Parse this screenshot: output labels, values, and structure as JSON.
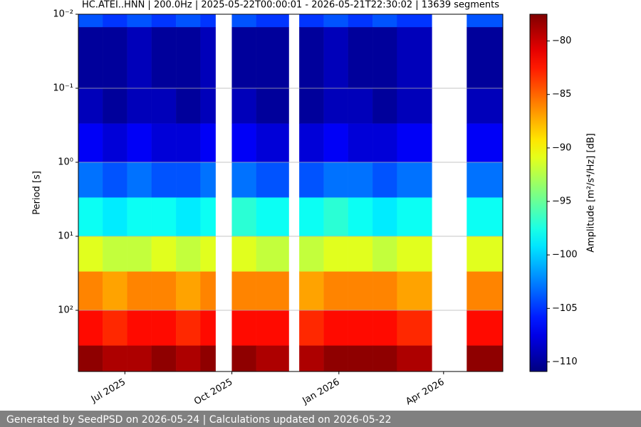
{
  "chart_data": {
    "type": "heatmap",
    "title": "HC.ATEI..HNN | 200.0Hz | 2025-05-22T00:00:01 - 2026-05-21T22:30:02 | 13639 segments",
    "ylabel": "Period [s]",
    "colorbar_label": "Amplitude [m²/s⁴/Hz] [dB]",
    "footer": "Generated by SeedPSD on 2026-05-24 | Calculations updated on 2026-05-22",
    "x": [
      "2025-05-22T00:00:01",
      "2025-06-12",
      "2025-07-03",
      "2025-07-24",
      "2025-08-14",
      "2025-09-04",
      "2025-09-17",
      "2025-10-01",
      "2025-10-22",
      "2025-11-19",
      "2025-11-28",
      "2025-12-19",
      "2026-01-09",
      "2026-01-30",
      "2026-02-20",
      "2026-03-22",
      "2026-04-21",
      "2026-05-21T22:30:02"
    ],
    "y": [
      0.01,
      0.015,
      0.1,
      0.3,
      1,
      3,
      10,
      30,
      100,
      300,
      671
    ],
    "values": [
      [
        -104,
        -105,
        -104,
        -105,
        -104,
        -105,
        null,
        -104,
        -105,
        null,
        -105,
        -104,
        -105,
        -104,
        -105,
        null,
        -104
      ],
      [
        -110,
        -110,
        -109,
        -110,
        -110,
        -109,
        null,
        -110,
        -110,
        null,
        -110,
        -109,
        -110,
        -110,
        -109,
        null,
        -110
      ],
      [
        -109,
        -110,
        -109,
        -109,
        -110,
        -109,
        null,
        -109,
        -110,
        null,
        -110,
        -109,
        -109,
        -110,
        -109,
        null,
        -109
      ],
      [
        -107,
        -108,
        -107,
        -108,
        -108,
        -107,
        null,
        -107,
        -108,
        null,
        -108,
        -107,
        -108,
        -108,
        -107,
        null,
        -107
      ],
      [
        -103,
        -104,
        -103,
        -104,
        -104,
        -103,
        null,
        -103,
        -104,
        null,
        -104,
        -103,
        -103,
        -104,
        -103,
        null,
        -103
      ],
      [
        -98,
        -99,
        -98,
        -98,
        -99,
        -98,
        null,
        -97,
        -98,
        null,
        -98,
        -97,
        -98,
        -99,
        -98,
        null,
        -98
      ],
      [
        -91,
        -92,
        -92,
        -91,
        -92,
        -91,
        null,
        -91,
        -92,
        null,
        -92,
        -91,
        -91,
        -92,
        -91,
        null,
        -91
      ],
      [
        -86,
        -87,
        -86,
        -86,
        -87,
        -86,
        null,
        -86,
        -86,
        null,
        -87,
        -86,
        -86,
        -86,
        -87,
        null,
        -86
      ],
      [
        -82,
        -83,
        -82,
        -82,
        -83,
        -82,
        null,
        -82,
        -82,
        null,
        -83,
        -82,
        -82,
        -82,
        -83,
        null,
        -82
      ],
      [
        -78,
        -79,
        -79,
        -78,
        -79,
        -78,
        null,
        -78,
        -79,
        null,
        -79,
        -78,
        -78,
        -78,
        -79,
        null,
        -78
      ]
    ],
    "xlim": [
      "2025-05-22T00:00:01",
      "2026-05-21T22:30:02"
    ],
    "xticks": [
      {
        "value": "2025-07-01",
        "label": "Jul 2025"
      },
      {
        "value": "2025-10-01",
        "label": "Oct 2025"
      },
      {
        "value": "2026-01-01",
        "label": "Jan 2026"
      },
      {
        "value": "2026-04-01",
        "label": "Apr 2026"
      }
    ],
    "ylim": [
      0.01,
      671
    ],
    "y_scale": "log",
    "y_inverted": true,
    "yticks": [
      {
        "value": 0.01,
        "label": "10⁻²"
      },
      {
        "value": 0.1,
        "label": "10⁻¹"
      },
      {
        "value": 1,
        "label": "10⁰"
      },
      {
        "value": 10,
        "label": "10¹"
      },
      {
        "value": 100,
        "label": "10²"
      }
    ],
    "grid": "y",
    "colormap": "jet",
    "clim": [
      -110.9,
      -77.5
    ],
    "cticks": [
      {
        "value": -80,
        "label": "−80"
      },
      {
        "value": -85,
        "label": "−85"
      },
      {
        "value": -90,
        "label": "−90"
      },
      {
        "value": -95,
        "label": "−95"
      },
      {
        "value": -100,
        "label": "−100"
      },
      {
        "value": -105,
        "label": "−105"
      },
      {
        "value": -110,
        "label": "−110"
      }
    ]
  }
}
